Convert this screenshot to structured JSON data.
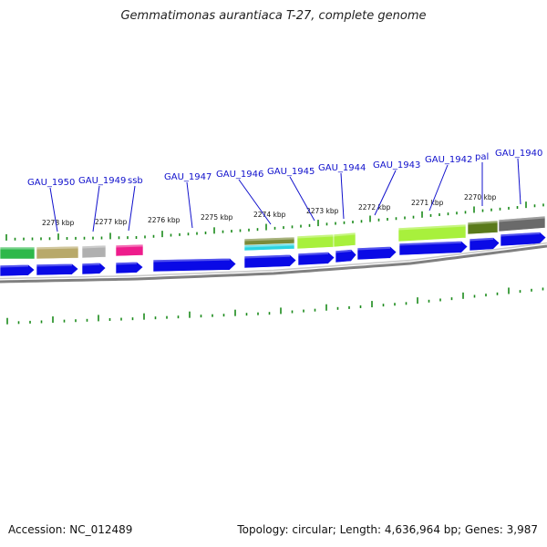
{
  "title": "Gemmatimonas aurantiaca T-27, complete genome",
  "footer": {
    "accession": "Accession: NC_012489",
    "summary": "Topology: circular; Length: 4,636,964 bp; Genes: 3,987"
  },
  "colors": {
    "cds_blue": "#0a0ae6",
    "tick_green": "#1a8a1a",
    "label_blue": "#1010cc",
    "backbone_gray": "#808080"
  },
  "ruler_labels": [
    "2278 kbp",
    "2277 kbp",
    "2276 kbp",
    "2275 kbp",
    "2274 kbp",
    "2273 kbp",
    "2272 kbp",
    "2271 kbp",
    "2270 kbp"
  ],
  "gene_labels": [
    "GAU_1950",
    "GAU_1949",
    "ssb",
    "GAU_1947",
    "GAU_1946",
    "GAU_1945",
    "GAU_1944",
    "GAU_1943",
    "GAU_1942",
    "pal",
    "GAU_1940"
  ],
  "cog_colors": [
    "#2db84a",
    "#b8a96a",
    "#b0b0b0",
    "#ee1c8c",
    "#7a8a3a",
    "#2ad4e0",
    "#a8f03c",
    "#a8f03c",
    "#a8f03c",
    "#5a7a1a",
    "#6a6a6a"
  ]
}
